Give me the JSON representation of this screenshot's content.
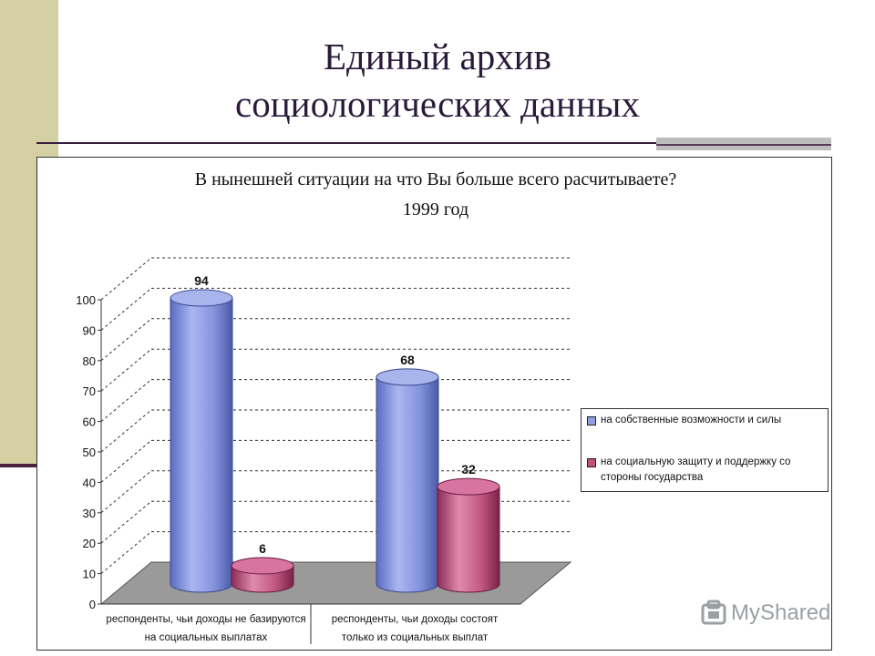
{
  "slide": {
    "title_line1": "Единый архив",
    "title_line2": "социологических данных"
  },
  "logo": {
    "text": "MyShared"
  },
  "colors": {
    "blue": "#8f9fe0",
    "blue_dark": "#5266b8",
    "red": "#c0507a",
    "red_dark": "#8a2a50",
    "floor": "#9a9a9a"
  },
  "chart_data": {
    "type": "bar",
    "title": "В нынешней ситуации на что Вы больше всего расчитываете?",
    "subtitle": "1999 год",
    "categories": [
      [
        "респонденты, чьи доходы не базируются",
        "на социальных выплатах"
      ],
      [
        "респонденты, чьи доходы состоят",
        "только из социальных выплат"
      ]
    ],
    "series": [
      {
        "name": "на собственные возможности и силы",
        "values": [
          94,
          68
        ]
      },
      {
        "name_lines": [
          "на социальную защиту и поддержку со",
          "стороны государства"
        ],
        "values": [
          6,
          32
        ]
      }
    ],
    "ylim": [
      0,
      100
    ],
    "yticks": [
      0,
      10,
      20,
      30,
      40,
      50,
      60,
      70,
      80,
      90,
      100
    ],
    "grid": true,
    "legend_position": "right"
  }
}
